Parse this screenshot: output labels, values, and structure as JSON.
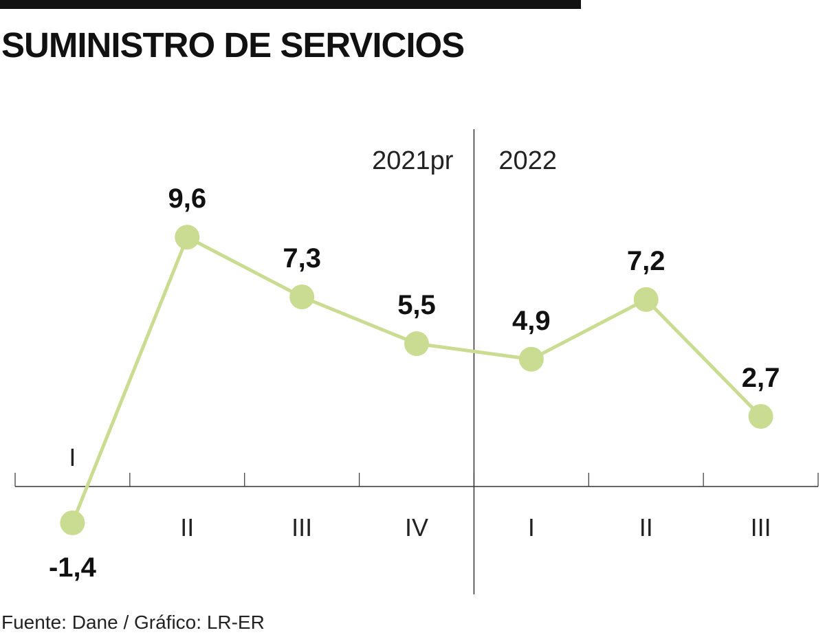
{
  "title": "SUMINISTRO DE SERVICIOS",
  "source": "Fuente: Dane / Gráfico: LR-ER",
  "chart_data": {
    "type": "line",
    "categories": [
      "I",
      "II",
      "III",
      "IV",
      "I",
      "II",
      "III"
    ],
    "periods": [
      {
        "label": "2021pr",
        "start_index": 0
      },
      {
        "label": "2022",
        "start_index": 4
      }
    ],
    "series": [
      {
        "values": [
          -1.4,
          9.6,
          7.3,
          5.5,
          4.9,
          7.2,
          2.7
        ]
      }
    ],
    "value_labels": [
      "-1,4",
      "9,6",
      "7,3",
      "5,5",
      "4,9",
      "7,2",
      "2,7"
    ],
    "ylim": [
      -2,
      11
    ],
    "grid": false,
    "line_color": "#c9dc91",
    "marker_color": "#c9dc91"
  }
}
